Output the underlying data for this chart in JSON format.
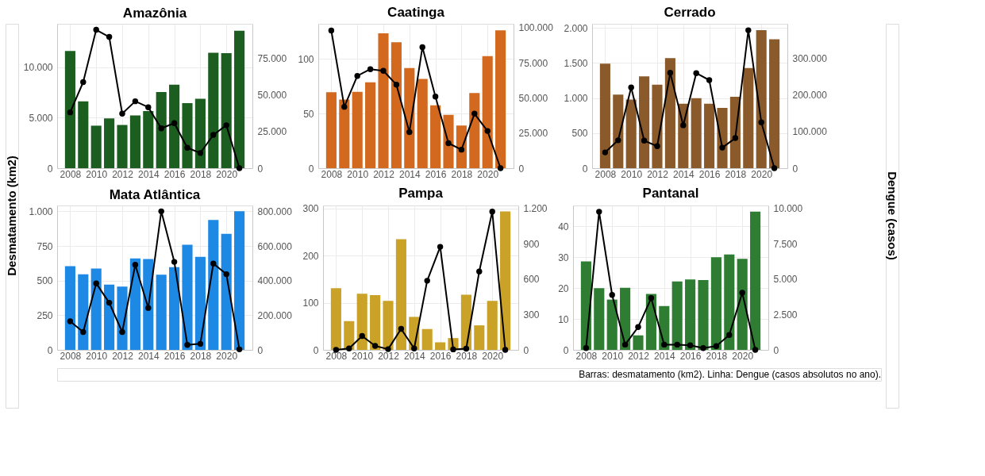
{
  "chart_data": [
    {
      "type": "bar",
      "title": "Amazônia",
      "ylabel": "Desmatamento (km2)",
      "x": [
        2008,
        2009,
        2010,
        2011,
        2012,
        2013,
        2014,
        2015,
        2016,
        2017,
        2018,
        2019,
        2020,
        2021
      ],
      "xlim": [
        2007,
        2022
      ],
      "xticks": [
        2008,
        2010,
        2012,
        2014,
        2016,
        2018,
        2020
      ],
      "ylim": [
        0,
        14300
      ],
      "yticks": [
        0,
        {
          "value": 5000,
          "label": "5.000"
        },
        {
          "value": 10000,
          "label": "10.000"
        }
      ],
      "y2lim": [
        0,
        98800
      ],
      "y2ticks": [
        0,
        {
          "value": 25000,
          "label": "25.000"
        },
        {
          "value": 50000,
          "label": "50.000"
        },
        {
          "value": 75000,
          "label": "75.000"
        }
      ],
      "grid": true,
      "marker": "circle",
      "series": [
        {
          "color": "#1b5e20",
          "values": [
            11600,
            6620,
            4210,
            4930,
            4280,
            5230,
            5650,
            7550,
            8260,
            6440,
            6880,
            11440,
            11390,
            13610
          ]
        },
        {
          "type": "line",
          "axis": "y2",
          "color": "#000000",
          "values": [
            38200,
            58900,
            94700,
            89800,
            37300,
            45800,
            41700,
            27300,
            30800,
            14000,
            10400,
            22800,
            29400,
            0
          ]
        }
      ]
    },
    {
      "type": "bar",
      "title": "Caatinga",
      "x": [
        2008,
        2009,
        2010,
        2011,
        2012,
        2013,
        2014,
        2015,
        2016,
        2017,
        2018,
        2019,
        2020,
        2021
      ],
      "xlim": [
        2007,
        2022
      ],
      "xticks": [
        2008,
        2010,
        2012,
        2014,
        2016,
        2018,
        2020
      ],
      "ylim": [
        0,
        132
      ],
      "yticks": [
        0,
        50,
        100
      ],
      "y2lim": [
        0,
        102800
      ],
      "y2ticks": [
        0,
        {
          "value": 25000,
          "label": "25.000"
        },
        {
          "value": 50000,
          "label": "50.000"
        },
        {
          "value": 75000,
          "label": "75.000"
        },
        {
          "value": 100000,
          "label": "100.000"
        }
      ],
      "grid": true,
      "marker": "circle",
      "series": [
        {
          "color": "#d2691e",
          "values": [
            69.4,
            62.7,
            69.8,
            78.6,
            123.3,
            115.2,
            91.6,
            81.6,
            57.4,
            48.8,
            39.0,
            68.7,
            102.4,
            126.1
          ]
        },
        {
          "type": "line",
          "axis": "y2",
          "color": "#000000",
          "values": [
            98000,
            43700,
            65700,
            70500,
            69300,
            59500,
            25700,
            86200,
            51000,
            17800,
            13200,
            38800,
            26500,
            0
          ]
        }
      ]
    },
    {
      "type": "bar",
      "title": "Cerrado",
      "y2label": "Dengue (casos)",
      "x": [
        2008,
        2009,
        2010,
        2011,
        2012,
        2013,
        2014,
        2015,
        2016,
        2017,
        2018,
        2019,
        2020,
        2021
      ],
      "xlim": [
        2007,
        2022
      ],
      "xticks": [
        2008,
        2010,
        2012,
        2014,
        2016,
        2018,
        2020
      ],
      "ylim": [
        0,
        2060
      ],
      "yticks": [
        0,
        500,
        {
          "value": 1000,
          "label": "1.000"
        },
        {
          "value": 1500,
          "label": "1.500"
        },
        {
          "value": 2000,
          "label": "2.000"
        }
      ],
      "y2lim": [
        0,
        393500
      ],
      "y2ticks": [
        0,
        {
          "value": 100000,
          "label": "100.000"
        },
        {
          "value": 200000,
          "label": "200.000"
        },
        {
          "value": 300000,
          "label": "300.000"
        }
      ],
      "grid": true,
      "marker": "circle",
      "series": [
        {
          "color": "#8b5a2b",
          "values": [
            1490,
            1050,
            980,
            1310,
            1190,
            1570,
            920,
            1000,
            920,
            860,
            1020,
            1430,
            1970,
            1840
          ]
        },
        {
          "type": "line",
          "axis": "y2",
          "color": "#000000",
          "values": [
            43000,
            76000,
            220000,
            75000,
            60000,
            260000,
            117000,
            259000,
            240000,
            56000,
            82000,
            376000,
            125000,
            0
          ]
        }
      ]
    },
    {
      "type": "bar",
      "title": "Mata Atlântica",
      "x": [
        2008,
        2009,
        2010,
        2011,
        2012,
        2013,
        2014,
        2015,
        2016,
        2017,
        2018,
        2019,
        2020,
        2021
      ],
      "xlim": [
        2007,
        2022
      ],
      "xticks": [
        2008,
        2010,
        2012,
        2014,
        2016,
        2018,
        2020
      ],
      "ylim": [
        0,
        1042
      ],
      "yticks": [
        0,
        250,
        500,
        750,
        {
          "value": 1000,
          "label": "1.000"
        }
      ],
      "y2lim": [
        0,
        833600
      ],
      "y2ticks": [
        0,
        {
          "value": 200000,
          "label": "200.000"
        },
        {
          "value": 400000,
          "label": "400.000"
        },
        {
          "value": 600000,
          "label": "600.000"
        },
        {
          "value": 800000,
          "label": "800.000"
        }
      ],
      "grid": true,
      "marker": "circle",
      "series": [
        {
          "color": "#1e88e5",
          "values": [
            604,
            546,
            587,
            471,
            457,
            660,
            655,
            543,
            597,
            759,
            672,
            937,
            838,
            1000
          ]
        },
        {
          "type": "line",
          "axis": "y2",
          "color": "#000000",
          "values": [
            165000,
            103000,
            384000,
            272000,
            103000,
            491000,
            242000,
            800000,
            508000,
            29000,
            35000,
            498000,
            437000,
            3000
          ]
        }
      ]
    },
    {
      "type": "bar",
      "title": "Pampa",
      "x": [
        2008,
        2009,
        2010,
        2011,
        2012,
        2013,
        2014,
        2015,
        2016,
        2017,
        2018,
        2019,
        2020,
        2021
      ],
      "xlim": [
        2007,
        2022
      ],
      "xticks": [
        2008,
        2010,
        2012,
        2014,
        2016,
        2018,
        2020
      ],
      "ylim": [
        0,
        306.5
      ],
      "yticks": [
        0,
        100,
        200,
        300
      ],
      "y2lim": [
        0,
        1226
      ],
      "y2ticks": [
        0,
        300,
        600,
        900,
        {
          "value": 1200,
          "label": "1.200"
        }
      ],
      "grid": true,
      "marker": "circle",
      "series": [
        {
          "color": "#c9a227",
          "values": [
            131,
            61,
            119,
            116,
            104,
            235,
            70,
            44,
            16,
            25,
            117,
            52,
            104,
            294
          ]
        },
        {
          "type": "line",
          "axis": "y2",
          "color": "#000000",
          "values": [
            0,
            12,
            118,
            34,
            6,
            178,
            12,
            587,
            875,
            4,
            10,
            665,
            1174,
            0
          ]
        }
      ]
    },
    {
      "type": "bar",
      "title": "Pantanal",
      "x": [
        2008,
        2009,
        2010,
        2011,
        2012,
        2013,
        2014,
        2015,
        2016,
        2017,
        2018,
        2019,
        2020,
        2021
      ],
      "xlim": [
        2007,
        2022
      ],
      "xticks": [
        2008,
        2010,
        2012,
        2014,
        2016,
        2018,
        2020
      ],
      "ylim": [
        0,
        46.8
      ],
      "yticks": [
        0,
        10,
        20,
        30,
        40
      ],
      "y2lim": [
        0,
        10220
      ],
      "y2ticks": [
        0,
        {
          "value": 2500,
          "label": "2.500"
        },
        {
          "value": 5000,
          "label": "5.000"
        },
        {
          "value": 7500,
          "label": "7.500"
        },
        {
          "value": 10000,
          "label": "10.000"
        }
      ],
      "grid": true,
      "marker": "circle",
      "annotations": [
        "Barras: desmatamento (km2). Linha: Dengue (casos absolutos no ano)."
      ],
      "series": [
        {
          "color": "#2e7d32",
          "values": [
            28.7,
            20.0,
            16.3,
            20.1,
            4.7,
            18.1,
            14.2,
            22.2,
            22.8,
            22.6,
            30.0,
            30.9,
            29.5,
            44.8
          ]
        },
        {
          "type": "line",
          "axis": "y2",
          "color": "#000000",
          "values": [
            130,
            9780,
            3890,
            370,
            1610,
            3660,
            370,
            370,
            320,
            130,
            270,
            1050,
            4040,
            0
          ]
        }
      ]
    }
  ]
}
